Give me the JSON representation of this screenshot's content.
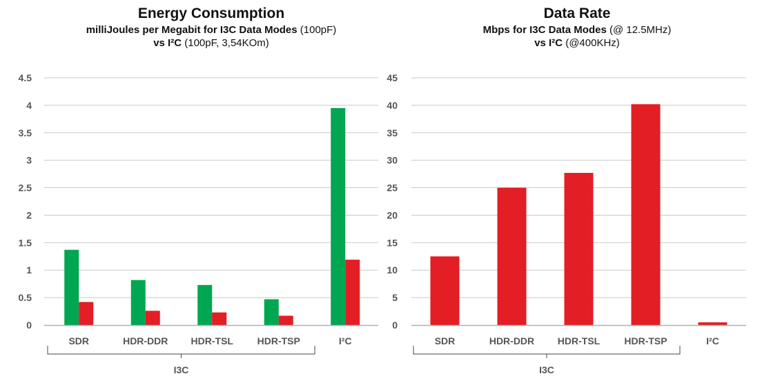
{
  "colors": {
    "green": "#00a651",
    "red": "#e31e24",
    "grid": "#c8c8c8",
    "axis": "#a7b1b8"
  },
  "chart_data": [
    {
      "type": "bar",
      "title": "Energy Consumption",
      "subtitle_line1_bold": "milliJoules per Megabit for I3C Data Modes",
      "subtitle_line1_rest": " (100pF)",
      "subtitle_line2_bold": "vs I²C",
      "subtitle_line2_rest": " (100pF, 3,54KOm)",
      "categories": [
        "SDR",
        "HDR-DDR",
        "HDR-TSL",
        "HDR-TSP",
        "I²C"
      ],
      "group_label": "I3C",
      "ylim": [
        0,
        4.5
      ],
      "yticks": [
        "0",
        "0.5",
        "1",
        "1.5",
        "2",
        "2.5",
        "3",
        "3.5",
        "4",
        "4.5"
      ],
      "series": [
        {
          "color": "#00a651",
          "values": [
            1.37,
            0.82,
            0.73,
            0.47,
            3.95
          ]
        },
        {
          "color": "#e31e24",
          "values": [
            0.42,
            0.26,
            0.23,
            0.17,
            1.19
          ]
        }
      ]
    },
    {
      "type": "bar",
      "title": "Data Rate",
      "subtitle_line1_bold": "Mbps for I3C Data Modes",
      "subtitle_line1_rest": " (@ 12.5MHz)",
      "subtitle_line2_bold": "vs I²C",
      "subtitle_line2_rest": " (@400KHz)",
      "categories": [
        "SDR",
        "HDR-DDR",
        "HDR-TSL",
        "HDR-TSP",
        "I²C"
      ],
      "group_label": "I3C",
      "ylim": [
        0,
        45
      ],
      "yticks": [
        "0",
        "5",
        "10",
        "15",
        "20",
        "25",
        "30",
        "35",
        "40",
        "45"
      ],
      "series": [
        {
          "color": "#e31e24",
          "values": [
            12.5,
            25.0,
            27.7,
            40.2,
            0.5
          ]
        }
      ]
    }
  ]
}
